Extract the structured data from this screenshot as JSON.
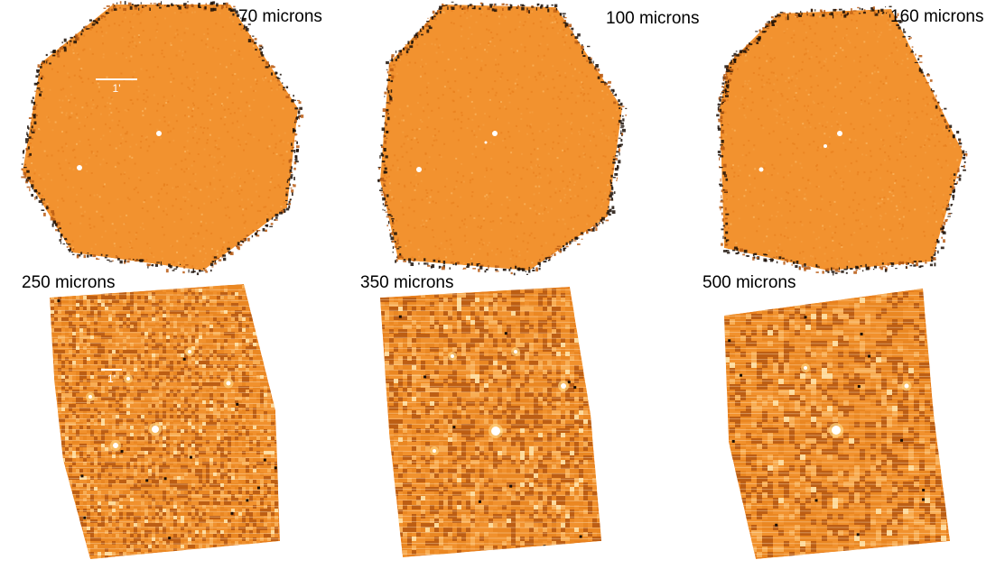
{
  "figure": {
    "panels": [
      {
        "id": "p70",
        "caption": "70 microns",
        "shape": "hexagon",
        "scale_bar": "1'"
      },
      {
        "id": "p100",
        "caption": "100 microns",
        "shape": "hexagon",
        "scale_bar": ""
      },
      {
        "id": "p160",
        "caption": "160 microns",
        "shape": "hexagon",
        "scale_bar": ""
      },
      {
        "id": "p250",
        "caption": "250 microns",
        "shape": "bowtie",
        "scale_bar": "1'"
      },
      {
        "id": "p350",
        "caption": "350 microns",
        "shape": "bowtie",
        "scale_bar": ""
      },
      {
        "id": "p500",
        "caption": "500 microns",
        "shape": "bowtie",
        "scale_bar": ""
      }
    ],
    "colors": {
      "background_map": "#F2922F",
      "mid_tone": "#E8801E",
      "dark_tone": "#B85A12",
      "bright_tone": "#FFE3A8",
      "edge_noise": "#1A0E06",
      "text": "#000000",
      "scale_bar": "#FFFFFF"
    }
  }
}
